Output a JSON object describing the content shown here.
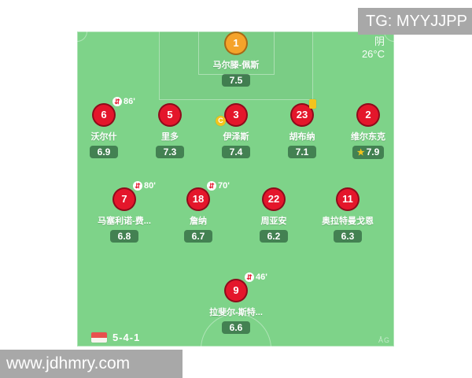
{
  "banners": {
    "tg": "TG: MYYJJPP",
    "site": "www.jdhmry.com"
  },
  "weather": {
    "condition": "阴",
    "temperature": "26°C"
  },
  "formation": "5-4-1",
  "pitch_corner_mark": "ÅG",
  "icons": {
    "substitution": "⇵",
    "star": "★",
    "captain": "C"
  },
  "colors": {
    "pitch_green": "#7ed389",
    "player_red": "#e4162b",
    "goalkeeper_orange": "#f5a32a",
    "badge_yellow": "#f2c41d",
    "banner_gray": "#a8a8a8",
    "indonesia_flag_red": "#e8504e",
    "rating_box": "rgba(8,48,28,0.5)"
  },
  "players": [
    {
      "number": "1",
      "name": "马尔滕-佩斯",
      "rating": "7.5",
      "position": "GK"
    },
    {
      "number": "6",
      "name": "沃尔什",
      "rating": "6.9",
      "sub_off": "86'"
    },
    {
      "number": "5",
      "name": "里多",
      "rating": "7.3"
    },
    {
      "number": "3",
      "name": "伊泽斯",
      "rating": "7.4",
      "captain": "C"
    },
    {
      "number": "23",
      "name": "胡布纳",
      "rating": "7.1",
      "yellow_card": true
    },
    {
      "number": "2",
      "name": "维尔东克",
      "rating": "7.9",
      "man_of_match": true
    },
    {
      "number": "7",
      "name": "马塞利诺-费...",
      "rating": "6.8",
      "sub_off": "80'"
    },
    {
      "number": "18",
      "name": "詹纳",
      "rating": "6.7",
      "sub_off": "70'"
    },
    {
      "number": "22",
      "name": "周亚安",
      "rating": "6.2"
    },
    {
      "number": "11",
      "name": "奥拉特曼戈恩",
      "rating": "6.3"
    },
    {
      "number": "9",
      "name": "拉斐尔-斯特...",
      "rating": "6.6",
      "sub_off": "46'"
    }
  ]
}
